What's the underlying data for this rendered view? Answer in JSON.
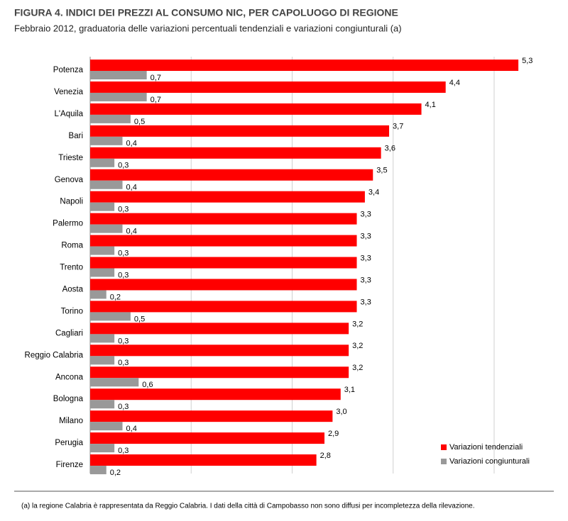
{
  "chart_data": {
    "type": "hbar",
    "title": "FIGURA 4. INDICI DEI PREZZI AL CONSUMO NIC, PER CAPOLUOGO DI REGIONE",
    "subtitle": "Febbraio 2012, graduatoria delle variazioni percentuali tendenziali e variazioni congiunturali (a)",
    "footnote": "(a) la regione Calabria è rappresentata da Reggio Calabria. I dati della città di Campobasso non sono diffusi per incompletezza della rilevazione.",
    "categories": [
      "Potenza",
      "Venezia",
      "L'Aquila",
      "Bari",
      "Trieste",
      "Genova",
      "Napoli",
      "Palermo",
      "Roma",
      "Trento",
      "Aosta",
      "Torino",
      "Cagliari",
      "Reggio Calabria",
      "Ancona",
      "Bologna",
      "Milano",
      "Perugia",
      "Firenze"
    ],
    "series": [
      {
        "name": "Variazioni tendenziali",
        "color": "#ff0000",
        "values": [
          5.3,
          4.4,
          4.1,
          3.7,
          3.6,
          3.5,
          3.4,
          3.3,
          3.3,
          3.3,
          3.3,
          3.3,
          3.2,
          3.2,
          3.2,
          3.1,
          3.0,
          2.9,
          2.8
        ],
        "value_labels": [
          "5,3",
          "4,4",
          "4,1",
          "3,7",
          "3,6",
          "3,5",
          "3,4",
          "3,3",
          "3,3",
          "3,3",
          "3,3",
          "3,3",
          "3,2",
          "3,2",
          "3,2",
          "3,1",
          "3,0",
          "2,9",
          "2,8"
        ]
      },
      {
        "name": "Variazioni congiunturali",
        "color": "#999999",
        "values": [
          0.7,
          0.7,
          0.5,
          0.4,
          0.3,
          0.4,
          0.3,
          0.4,
          0.3,
          0.3,
          0.2,
          0.5,
          0.3,
          0.3,
          0.6,
          0.3,
          0.4,
          0.3,
          0.2
        ],
        "value_labels": [
          "0,7",
          "0,7",
          "0,5",
          "0,4",
          "0,3",
          "0,4",
          "0,3",
          "0,4",
          "0,3",
          "0,3",
          "0,2",
          "0,5",
          "0,3",
          "0,3",
          "0,6",
          "0,3",
          "0,4",
          "0,3",
          "0,2"
        ]
      }
    ],
    "xlim": [
      0,
      5.8
    ],
    "xticks": [
      0,
      1.25,
      2.5,
      3.75,
      5
    ],
    "grid": true,
    "legend": "bottom-right"
  }
}
